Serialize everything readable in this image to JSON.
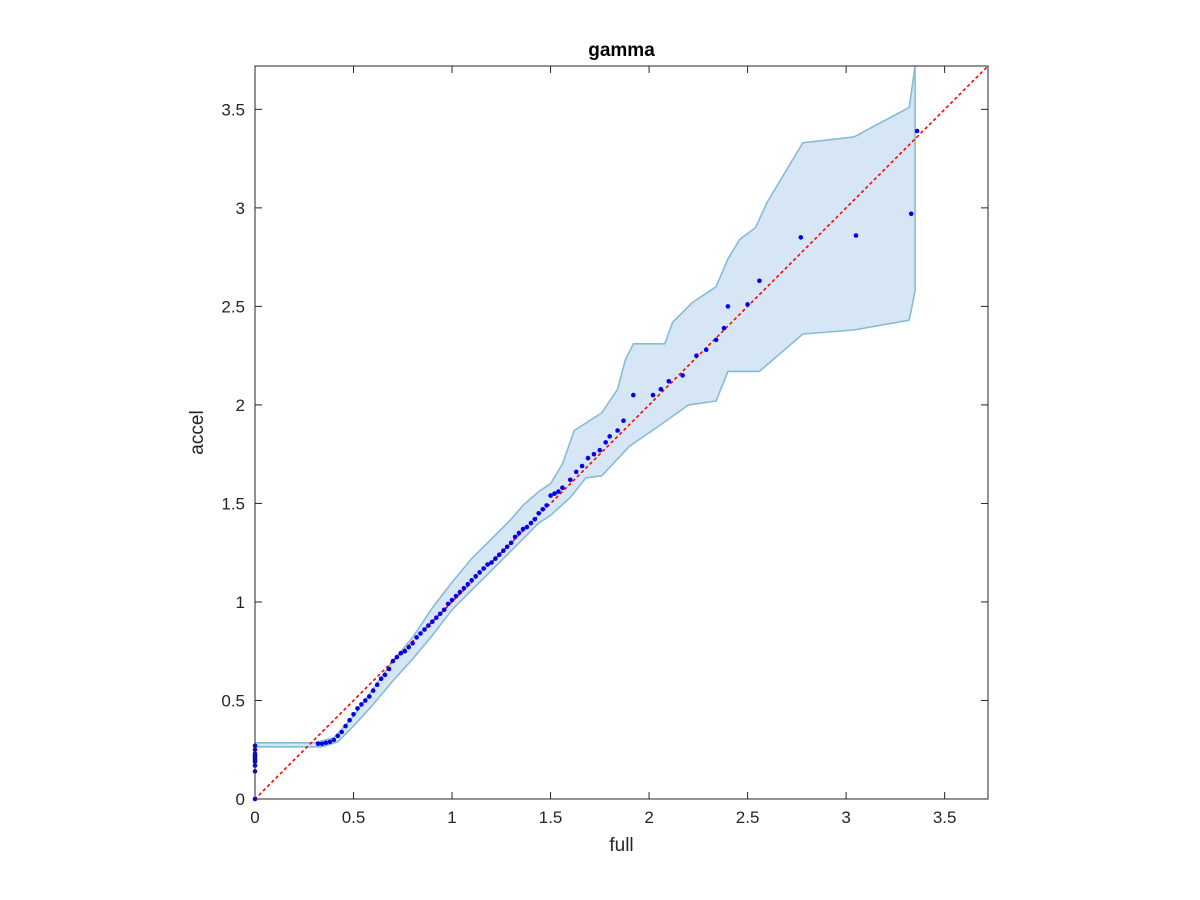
{
  "chart_data": {
    "type": "scatter",
    "title": "gamma",
    "xlabel": "full",
    "ylabel": "accel",
    "xlim": [
      0,
      3.72
    ],
    "ylim": [
      0,
      3.72
    ],
    "xticks": [
      0,
      0.5,
      1,
      1.5,
      2,
      2.5,
      3,
      3.5
    ],
    "yticks": [
      0,
      0.5,
      1,
      1.5,
      2,
      2.5,
      3,
      3.5
    ],
    "xtick_labels": [
      "0",
      "0.5",
      "1",
      "1.5",
      "2",
      "2.5",
      "3",
      "3.5"
    ],
    "ytick_labels": [
      "0",
      "0.5",
      "1",
      "1.5",
      "2",
      "2.5",
      "3",
      "3.5"
    ],
    "grid": false,
    "colors": {
      "points": "#0000ee",
      "reference_line": "#ff0000",
      "band_fill": "#d6e6f4",
      "band_edge": "#86bbd8",
      "axes": "#262626"
    },
    "reference_line": {
      "x": [
        0,
        3.72
      ],
      "y": [
        0,
        3.72
      ],
      "style": "dotted"
    },
    "band": {
      "upper": [
        [
          0.0,
          0.285
        ],
        [
          0.3,
          0.285
        ],
        [
          0.4,
          0.31
        ],
        [
          0.5,
          0.42
        ],
        [
          0.6,
          0.56
        ],
        [
          0.7,
          0.7
        ],
        [
          0.8,
          0.82
        ],
        [
          0.9,
          0.97
        ],
        [
          1.0,
          1.1
        ],
        [
          1.1,
          1.22
        ],
        [
          1.2,
          1.32
        ],
        [
          1.3,
          1.42
        ],
        [
          1.36,
          1.49
        ],
        [
          1.44,
          1.56
        ],
        [
          1.5,
          1.6
        ],
        [
          1.56,
          1.7
        ],
        [
          1.62,
          1.87
        ],
        [
          1.76,
          1.96
        ],
        [
          1.84,
          2.08
        ],
        [
          1.88,
          2.23
        ],
        [
          1.92,
          2.31
        ],
        [
          2.08,
          2.31
        ],
        [
          2.12,
          2.42
        ],
        [
          2.22,
          2.52
        ],
        [
          2.34,
          2.6
        ],
        [
          2.4,
          2.74
        ],
        [
          2.46,
          2.84
        ],
        [
          2.54,
          2.9
        ],
        [
          2.6,
          3.03
        ],
        [
          2.78,
          3.33
        ],
        [
          3.04,
          3.36
        ],
        [
          3.32,
          3.51
        ],
        [
          3.35,
          3.72
        ]
      ],
      "lower": [
        [
          3.35,
          2.58
        ],
        [
          3.32,
          2.43
        ],
        [
          3.04,
          2.38
        ],
        [
          2.78,
          2.36
        ],
        [
          2.56,
          2.17
        ],
        [
          2.4,
          2.17
        ],
        [
          2.34,
          2.02
        ],
        [
          2.2,
          2.0
        ],
        [
          2.06,
          1.9
        ],
        [
          1.9,
          1.79
        ],
        [
          1.76,
          1.64
        ],
        [
          1.68,
          1.63
        ],
        [
          1.6,
          1.53
        ],
        [
          1.5,
          1.44
        ],
        [
          1.44,
          1.4
        ],
        [
          1.36,
          1.32
        ],
        [
          1.3,
          1.26
        ],
        [
          1.2,
          1.16
        ],
        [
          1.1,
          1.06
        ],
        [
          1.0,
          0.96
        ],
        [
          0.9,
          0.83
        ],
        [
          0.8,
          0.71
        ],
        [
          0.7,
          0.6
        ],
        [
          0.6,
          0.48
        ],
        [
          0.5,
          0.37
        ],
        [
          0.42,
          0.29
        ],
        [
          0.34,
          0.265
        ],
        [
          0.0,
          0.265
        ]
      ]
    },
    "points": {
      "x": [
        0,
        0,
        0,
        0,
        0,
        0,
        0,
        0,
        0,
        0,
        0.32,
        0.34,
        0.36,
        0.38,
        0.4,
        0.42,
        0.44,
        0.46,
        0.48,
        0.5,
        0.52,
        0.54,
        0.56,
        0.58,
        0.6,
        0.62,
        0.64,
        0.66,
        0.68,
        0.7,
        0.72,
        0.74,
        0.76,
        0.78,
        0.8,
        0.82,
        0.84,
        0.86,
        0.88,
        0.9,
        0.92,
        0.94,
        0.96,
        0.98,
        1.0,
        1.02,
        1.04,
        1.06,
        1.08,
        1.1,
        1.12,
        1.14,
        1.16,
        1.18,
        1.2,
        1.22,
        1.24,
        1.26,
        1.28,
        1.3,
        1.32,
        1.34,
        1.36,
        1.38,
        1.4,
        1.42,
        1.44,
        1.46,
        1.48,
        1.5,
        1.52,
        1.54,
        1.56,
        1.6,
        1.63,
        1.66,
        1.69,
        1.72,
        1.75,
        1.78,
        1.8,
        1.84,
        1.87,
        1.92,
        2.02,
        2.06,
        2.1,
        2.17,
        2.24,
        2.29,
        2.34,
        2.38,
        2.4,
        2.5,
        2.56,
        2.77,
        3.05,
        3.33,
        3.36
      ],
      "y": [
        0.0,
        0.14,
        0.17,
        0.19,
        0.2,
        0.21,
        0.22,
        0.23,
        0.25,
        0.27,
        0.28,
        0.28,
        0.285,
        0.29,
        0.3,
        0.32,
        0.34,
        0.37,
        0.4,
        0.43,
        0.46,
        0.48,
        0.5,
        0.52,
        0.55,
        0.58,
        0.61,
        0.63,
        0.66,
        0.7,
        0.72,
        0.74,
        0.75,
        0.77,
        0.79,
        0.82,
        0.84,
        0.86,
        0.88,
        0.9,
        0.92,
        0.94,
        0.96,
        0.99,
        1.01,
        1.03,
        1.05,
        1.07,
        1.09,
        1.11,
        1.13,
        1.15,
        1.17,
        1.19,
        1.2,
        1.22,
        1.24,
        1.26,
        1.28,
        1.3,
        1.33,
        1.35,
        1.37,
        1.38,
        1.4,
        1.42,
        1.45,
        1.47,
        1.49,
        1.54,
        1.55,
        1.56,
        1.58,
        1.62,
        1.66,
        1.69,
        1.73,
        1.75,
        1.77,
        1.81,
        1.84,
        1.87,
        1.92,
        2.05,
        2.05,
        2.08,
        2.12,
        2.15,
        2.25,
        2.28,
        2.33,
        2.39,
        2.5,
        2.51,
        2.63,
        2.85,
        2.86,
        2.97,
        3.39
      ]
    }
  }
}
